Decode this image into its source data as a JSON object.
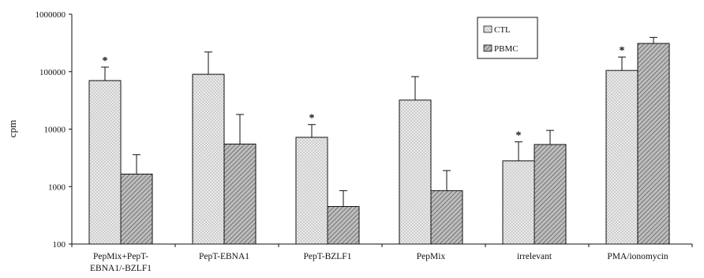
{
  "chart_data": {
    "type": "bar",
    "ylabel": "cpm",
    "xlabel": "",
    "title": "",
    "yscale": "log",
    "ylim": [
      100,
      1000000
    ],
    "yticks": [
      "100",
      "1000",
      "10000",
      "100000",
      "1000000"
    ],
    "ytick_values": [
      100,
      1000,
      10000,
      100000,
      1000000
    ],
    "categories": [
      [
        "PepMix+PepT-",
        "EBNA1/-BZLF1"
      ],
      [
        "PepT-EBNA1"
      ],
      [
        "PepT-BZLF1"
      ],
      [
        "PepMix"
      ],
      [
        "irrelevant"
      ],
      [
        "PMA/ionomycin"
      ]
    ],
    "series": [
      {
        "name": "CTL",
        "pattern": "dots",
        "values": [
          70000,
          90000,
          7200,
          32000,
          2800,
          105000
        ],
        "error_upper": [
          120000,
          220000,
          12000,
          82000,
          6000,
          180000
        ],
        "significance": [
          "*",
          "",
          "*",
          "",
          "*",
          "*"
        ]
      },
      {
        "name": "PBMC",
        "pattern": "diagonal",
        "values": [
          1650,
          5500,
          450,
          850,
          5400,
          310000
        ],
        "error_upper": [
          3600,
          18000,
          850,
          1900,
          9500,
          395000
        ],
        "significance": [
          "",
          "",
          "",
          "",
          "",
          ""
        ]
      }
    ],
    "legend": {
      "position": "top-right",
      "entries": [
        "CTL",
        "PBMC"
      ]
    },
    "colors": {
      "axis": "#111111",
      "bar_stroke": "#111111",
      "ctl_fill": "#e6e6e6",
      "pbmc_fill": "#b8b8b8"
    }
  }
}
